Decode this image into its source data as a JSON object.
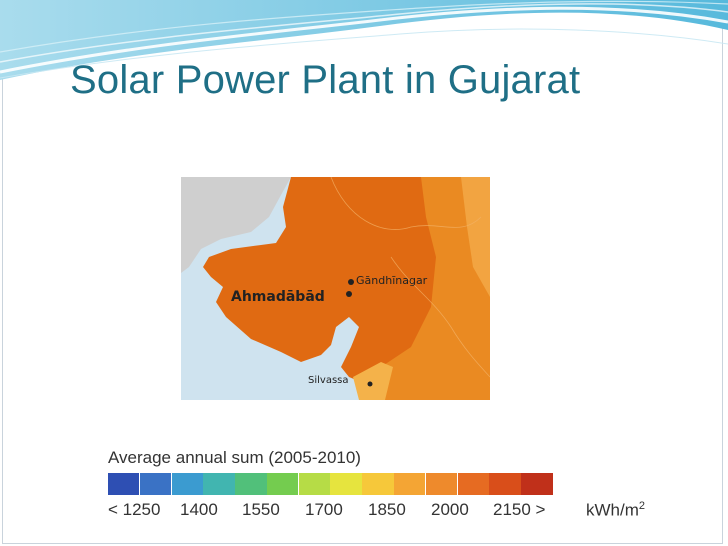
{
  "slide": {
    "title": "Solar Power Plant in Gujarat"
  },
  "map": {
    "labels": {
      "gandhinagar": "Gāndhīnagar",
      "ahmadabad": "Ahmadābād",
      "silvassa": "Silvassa"
    },
    "colors": {
      "sea": "#cfe3ef",
      "land_gray": "#cfcfcf",
      "orange_dark": "#e06a12",
      "orange_mid": "#ea8a22",
      "orange_light": "#f2a441"
    }
  },
  "legend": {
    "title": "Average annual sum (2005-2010)",
    "swatch_colors": [
      "#2e4fb3",
      "#3a72c5",
      "#3b9bd0",
      "#41b5b0",
      "#51c07a",
      "#74cc4f",
      "#b6dc46",
      "#e6e43e",
      "#f6c83a",
      "#f4a534",
      "#ee8a2c",
      "#e66b22",
      "#d94e1a",
      "#c0301a"
    ],
    "ticks": [
      "< 1250",
      "1400",
      "1550",
      "1700",
      "1850",
      "2000",
      "2150 >"
    ],
    "unit": "kWh/m",
    "unit_superscript": "2"
  }
}
